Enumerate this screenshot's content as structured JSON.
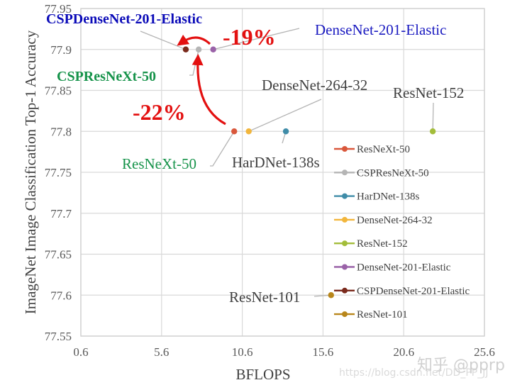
{
  "chart_data": {
    "type": "scatter",
    "title": "",
    "xlabel": "BFLOPS",
    "ylabel": "ImageNet Image Classification Top-1 Accuracy",
    "xlim": [
      0.6,
      25.6
    ],
    "ylim": [
      77.55,
      77.95
    ],
    "x_ticks": [
      "0.6",
      "5.6",
      "10.6",
      "15.6",
      "20.6",
      "25.6"
    ],
    "y_ticks": [
      "77.95",
      "77.9",
      "77.85",
      "77.8",
      "77.75",
      "77.7",
      "77.65",
      "77.6",
      "77.55"
    ],
    "grid": true,
    "legend_position": "inside-right",
    "series": [
      {
        "name": "ResNeXt-50",
        "x": 10.1,
        "y": 77.8,
        "color": "#d9573b"
      },
      {
        "name": "CSPResNeXt-50",
        "x": 7.9,
        "y": 77.9,
        "color": "#b5b5b5"
      },
      {
        "name": "HarDNet-138s",
        "x": 13.3,
        "y": 77.8,
        "color": "#3f8ca8"
      },
      {
        "name": "DenseNet-264-32",
        "x": 11.0,
        "y": 77.8,
        "color": "#f2b63c"
      },
      {
        "name": "ResNet-152",
        "x": 22.4,
        "y": 77.8,
        "color": "#a3bd3a"
      },
      {
        "name": "DenseNet-201-Elastic",
        "x": 8.8,
        "y": 77.9,
        "color": "#9a62a8"
      },
      {
        "name": "CSPDenseNet-201-Elastic",
        "x": 7.1,
        "y": 77.9,
        "color": "#7a2a1c"
      },
      {
        "name": "ResNet-101",
        "x": 16.1,
        "y": 77.6,
        "color": "#b8861a"
      }
    ],
    "annotations": [
      {
        "text": "-19%",
        "type": "arrow",
        "from": "DenseNet-201-Elastic",
        "to": "CSPDenseNet-201-Elastic",
        "color": "#e31010"
      },
      {
        "text": "-22%",
        "type": "arrow",
        "from": "ResNeXt-50",
        "to": "CSPResNeXt-50",
        "color": "#e31010"
      }
    ],
    "point_labels": {
      "CSPDenseNet-201-Elastic": "CSPDenseNet-201-Elastic",
      "DenseNet-201-Elastic": "DenseNet-201-Elastic",
      "CSPResNeXt-50": "CSPResNeXt-50",
      "DenseNet-264-32": "DenseNet-264-32",
      "ResNet-152": "ResNet-152",
      "ResNeXt-50": "ResNeXt-50",
      "HarDNet-138s": "HarDNet-138s",
      "ResNet-101": "ResNet-101"
    }
  },
  "watermark": {
    "line1": "知乎 @pprp",
    "line2": "https://blog.csdn.net/DD_PP_JJ"
  }
}
